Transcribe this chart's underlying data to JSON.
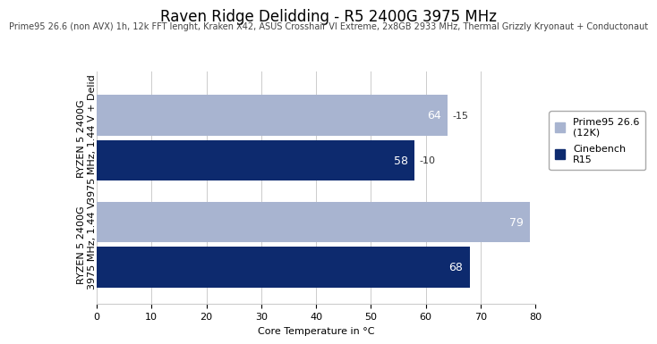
{
  "title": "Raven Ridge Delidding - R5 2400G 3975 MHz",
  "subtitle": "Prime95 26.6 (non AVX) 1h, 12k FFT lenght, Kraken X42, ASUS Crosshair VI Extreme, 2x8GB 2933 MHz, Thermal Grizzly Kryonaut + Conductonaut",
  "xlabel": "Core Temperature in °C",
  "xlim": [
    0,
    80
  ],
  "xticks": [
    0,
    10,
    20,
    30,
    40,
    50,
    60,
    70,
    80
  ],
  "groups": [
    {
      "label": "RYZEN 5 2400G\n3975 MHz, 1.44 V + Delid",
      "prime95": 64,
      "cinebench": 58,
      "prime95_annotation": "-15",
      "cinebench_annotation": "-10"
    },
    {
      "label": "RYZEN 5 2400G\n3975 MHz, 1.44 V",
      "prime95": 79,
      "cinebench": 68,
      "prime95_annotation": "",
      "cinebench_annotation": ""
    }
  ],
  "color_prime95": "#a8b4d0",
  "color_cinebench": "#0d2a6e",
  "legend_labels": [
    "Prime95 26.6\n(12K)",
    "Cinebench\nR15"
  ],
  "bar_height": 0.38,
  "background_color": "#ffffff",
  "grid_color": "#cccccc",
  "title_fontsize": 12,
  "subtitle_fontsize": 7,
  "label_fontsize": 8,
  "tick_fontsize": 8,
  "value_fontsize": 9,
  "annotation_fontsize": 8
}
